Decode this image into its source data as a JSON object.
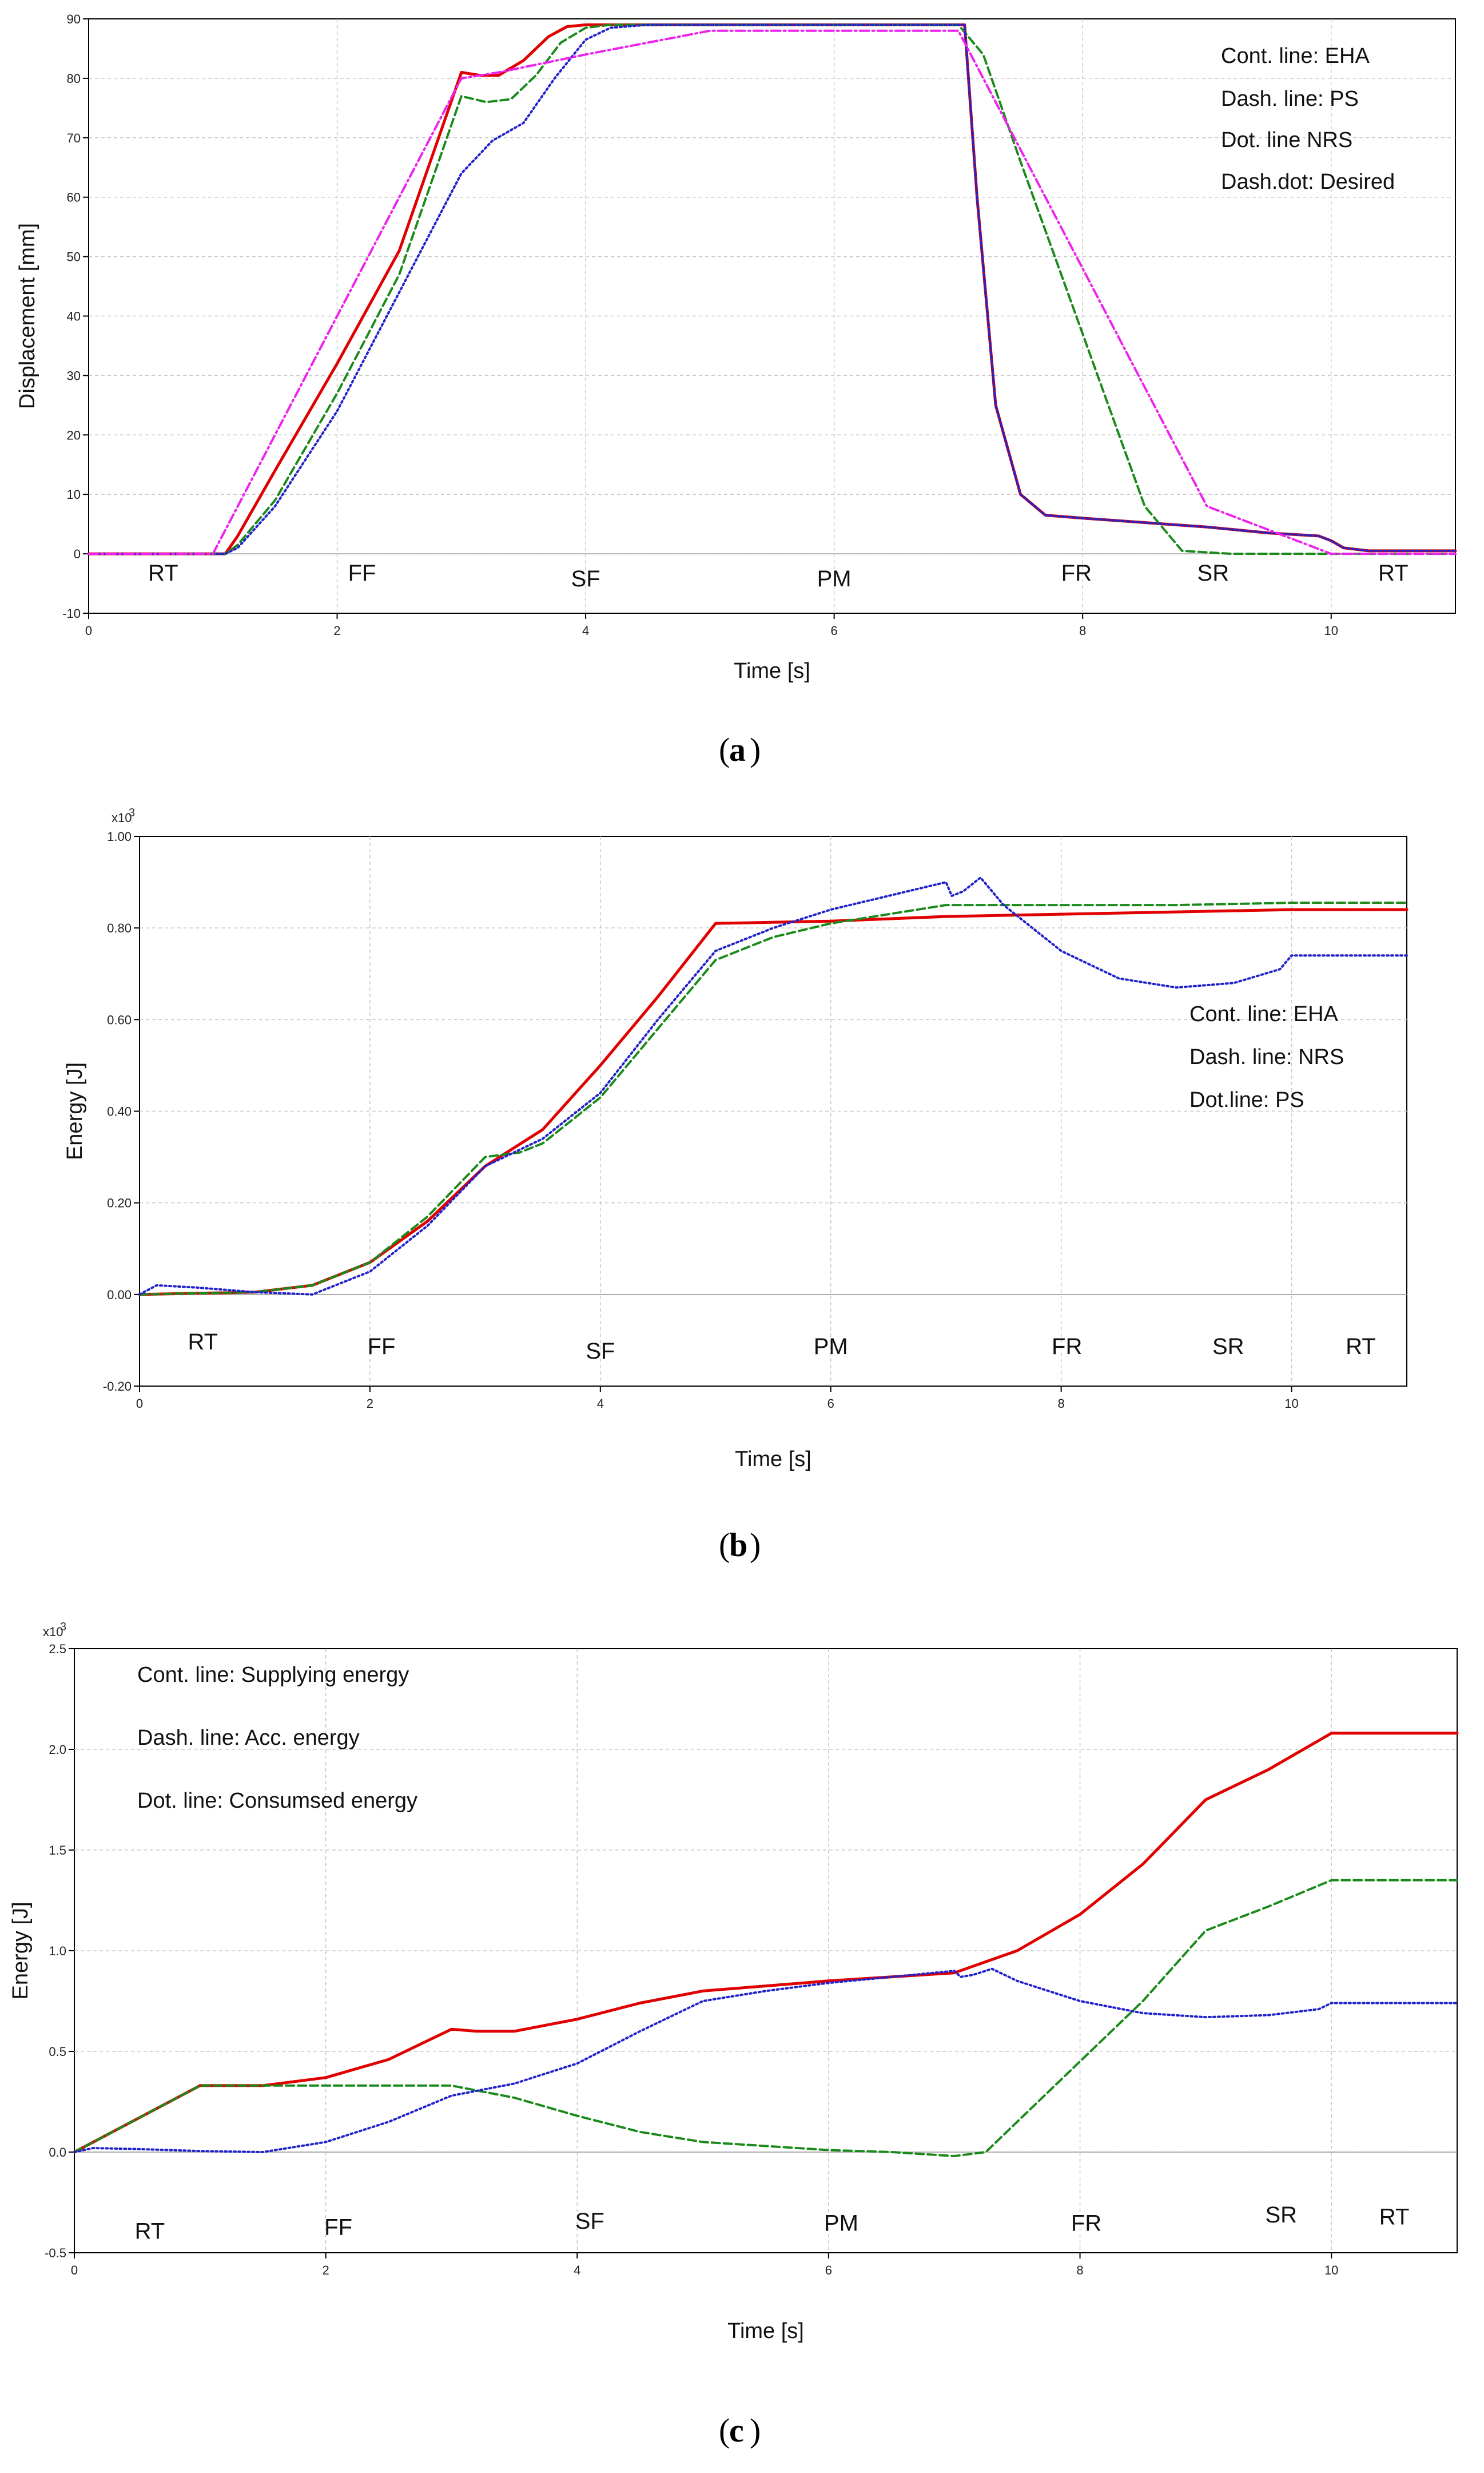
{
  "figure": {
    "panels": [
      {
        "caption_letter": "a"
      },
      {
        "caption_letter": "b"
      },
      {
        "caption_letter": "c"
      }
    ]
  },
  "chart_data": [
    {
      "type": "line",
      "panel": "a",
      "xlabel": "Time [s]",
      "ylabel": "Displacement [mm]",
      "xlim": [
        0,
        11
      ],
      "ylim": [
        -10,
        90
      ],
      "x_ticks": [
        0,
        2,
        4,
        6,
        8,
        10
      ],
      "x_tick_labels": [
        "0",
        "2",
        "4",
        "6",
        "8",
        "10"
      ],
      "y_ticks": [
        -10,
        0,
        10,
        20,
        30,
        40,
        50,
        60,
        70,
        80,
        90
      ],
      "y_tick_labels": [
        "-10",
        "0",
        "10",
        "20",
        "30",
        "40",
        "50",
        "60",
        "70",
        "80",
        "90"
      ],
      "grid": true,
      "annotations": [
        "Cont. line: EHA",
        "Dash. line: PS",
        "Dot. line NRS",
        "Dash.dot: Desired"
      ],
      "phases": [
        {
          "label": "RT",
          "x": 0.6,
          "y": -4.5
        },
        {
          "label": "FF",
          "x": 2.2,
          "y": -4.5
        },
        {
          "label": "SF",
          "x": 4.0,
          "y": -5.5
        },
        {
          "label": "PM",
          "x": 6.0,
          "y": -5.5
        },
        {
          "label": "FR",
          "x": 7.95,
          "y": -4.5
        },
        {
          "label": "SR",
          "x": 9.05,
          "y": -4.5
        },
        {
          "label": "RT",
          "x": 10.5,
          "y": -4.5
        }
      ],
      "series": [
        {
          "name": "EHA",
          "color": "#e00000",
          "style": "solid",
          "x": [
            0,
            1.1,
            1.2,
            1.5,
            2.0,
            2.5,
            3.0,
            3.15,
            3.3,
            3.5,
            3.7,
            3.85,
            4.0,
            7.05,
            7.15,
            7.3,
            7.5,
            7.7,
            8.0,
            9.0,
            9.5,
            9.9,
            10.0,
            10.1,
            10.3,
            11.0
          ],
          "y": [
            0,
            0,
            3,
            14,
            32,
            51,
            81,
            80.5,
            80.5,
            83,
            87,
            88.7,
            89,
            89,
            60,
            25,
            10,
            6.5,
            6,
            4.5,
            3.5,
            3,
            2.2,
            1,
            0.5,
            0.5
          ]
        },
        {
          "name": "PS",
          "color": "#1a8a1a",
          "style": "dash",
          "x": [
            0,
            1.1,
            1.2,
            1.5,
            2.0,
            2.5,
            3.0,
            3.2,
            3.4,
            3.6,
            3.8,
            4.0,
            4.2,
            7.0,
            7.2,
            7.5,
            8.0,
            8.5,
            8.8,
            9.2,
            11.0
          ],
          "y": [
            0,
            0,
            1.5,
            9,
            27,
            47,
            77,
            76,
            76.5,
            80.5,
            86,
            88.5,
            89,
            89,
            84,
            66,
            37,
            8,
            0.5,
            0,
            0
          ]
        },
        {
          "name": "NRS",
          "color": "#2222cc",
          "style": "dot",
          "x": [
            0,
            1.1,
            1.2,
            1.5,
            2.0,
            2.5,
            3.0,
            3.25,
            3.5,
            3.75,
            4.0,
            4.2,
            4.5,
            7.05,
            7.15,
            7.3,
            7.5,
            7.7,
            8.0,
            9.0,
            9.5,
            9.9,
            10.0,
            10.1,
            10.3,
            11.0
          ],
          "y": [
            0,
            0,
            1,
            8,
            24,
            44,
            64,
            69.5,
            72.5,
            80,
            86.5,
            88.5,
            89,
            89,
            60,
            25,
            10,
            6.5,
            6,
            4.5,
            3.5,
            3,
            2.2,
            1,
            0.5,
            0.5
          ]
        },
        {
          "name": "Desired",
          "color": "#ee22ee",
          "style": "dashdot",
          "x": [
            0,
            1.0,
            3.0,
            3.3,
            4.0,
            5.0,
            7.0,
            9.0,
            10.0,
            11.0
          ],
          "y": [
            0,
            0,
            80,
            81,
            84,
            88,
            88,
            8,
            0,
            0
          ]
        }
      ]
    },
    {
      "type": "line",
      "panel": "b",
      "xlabel": "Time [s]",
      "ylabel": "Energy [J]",
      "y_multiplier": "x10",
      "y_multiplier_exp": "3",
      "xlim": [
        0,
        11
      ],
      "ylim": [
        -0.2,
        1.0
      ],
      "x_ticks": [
        0,
        2,
        4,
        6,
        8,
        10
      ],
      "x_tick_labels": [
        "0",
        "2",
        "4",
        "6",
        "8",
        "10"
      ],
      "y_ticks": [
        -0.2,
        0,
        0.2,
        0.4,
        0.6,
        0.8,
        1.0
      ],
      "y_tick_labels": [
        "-0.20",
        "0.00",
        "0.20",
        "0.40",
        "0.60",
        "0.80",
        "1.00"
      ],
      "grid": true,
      "annotations": [
        "Cont. line: EHA",
        "Dash. line: NRS",
        "Dot.line: PS"
      ],
      "phases": [
        {
          "label": "RT",
          "x": 0.55,
          "y": -0.12
        },
        {
          "label": "FF",
          "x": 2.1,
          "y": -0.13
        },
        {
          "label": "SF",
          "x": 4.0,
          "y": -0.14
        },
        {
          "label": "PM",
          "x": 6.0,
          "y": -0.13
        },
        {
          "label": "FR",
          "x": 8.05,
          "y": -0.13
        },
        {
          "label": "SR",
          "x": 9.45,
          "y": -0.13
        },
        {
          "label": "RT",
          "x": 10.6,
          "y": -0.13
        }
      ],
      "series": [
        {
          "name": "EHA",
          "color": "#e00000",
          "style": "solid",
          "x": [
            0,
            1.0,
            1.5,
            2.0,
            2.5,
            3.0,
            3.5,
            4.0,
            4.5,
            5.0,
            6.0,
            7.0,
            8.0,
            9.0,
            10.0,
            11.0
          ],
          "y": [
            0,
            0.005,
            0.02,
            0.07,
            0.16,
            0.28,
            0.36,
            0.5,
            0.65,
            0.81,
            0.815,
            0.825,
            0.83,
            0.835,
            0.84,
            0.84
          ]
        },
        {
          "name": "NRS",
          "color": "#1a8a1a",
          "style": "dash",
          "x": [
            0,
            1.0,
            1.5,
            2.0,
            2.5,
            3.0,
            3.3,
            3.5,
            4.0,
            4.5,
            5.0,
            5.5,
            6.0,
            7.0,
            8.0,
            9.0,
            10.0,
            11.0
          ],
          "y": [
            0,
            0.005,
            0.02,
            0.07,
            0.17,
            0.3,
            0.31,
            0.33,
            0.43,
            0.58,
            0.73,
            0.78,
            0.81,
            0.85,
            0.85,
            0.85,
            0.855,
            0.855
          ]
        },
        {
          "name": "PS",
          "color": "#2222cc",
          "style": "dot",
          "x": [
            0,
            0.15,
            0.5,
            1.0,
            1.5,
            2.0,
            2.5,
            3.0,
            3.5,
            4.0,
            4.5,
            5.0,
            5.5,
            6.0,
            6.5,
            7.0,
            7.05,
            7.15,
            7.3,
            7.5,
            8.0,
            8.5,
            9.0,
            9.5,
            9.9,
            10.0,
            10.2,
            11.0
          ],
          "y": [
            0,
            0.02,
            0.015,
            0.005,
            0.0,
            0.05,
            0.15,
            0.28,
            0.34,
            0.44,
            0.6,
            0.75,
            0.8,
            0.84,
            0.87,
            0.9,
            0.87,
            0.88,
            0.91,
            0.85,
            0.75,
            0.69,
            0.67,
            0.68,
            0.71,
            0.74,
            0.74,
            0.74
          ]
        }
      ]
    },
    {
      "type": "line",
      "panel": "c",
      "xlabel": "Time [s]",
      "ylabel": "Energy [J]",
      "y_multiplier": "x10",
      "y_multiplier_exp": "3",
      "xlim": [
        0,
        11
      ],
      "ylim": [
        -0.5,
        2.5
      ],
      "x_ticks": [
        0,
        2,
        4,
        6,
        8,
        10
      ],
      "x_tick_labels": [
        "0",
        "2",
        "4",
        "6",
        "8",
        "10"
      ],
      "y_ticks": [
        -0.5,
        0,
        0.5,
        1.0,
        1.5,
        2.0,
        2.5
      ],
      "y_tick_labels": [
        "-0.5",
        "0.0",
        "0.5",
        "1.0",
        "1.5",
        "2.0",
        "2.5"
      ],
      "grid": true,
      "annotations": [
        "Cont. line: Supplying energy",
        "Dash. line: Acc. energy",
        "Dot. line: Consumsed energy"
      ],
      "phases": [
        {
          "label": "RT",
          "x": 0.6,
          "y": -0.43
        },
        {
          "label": "FF",
          "x": 2.1,
          "y": -0.41
        },
        {
          "label": "SF",
          "x": 4.1,
          "y": -0.38
        },
        {
          "label": "PM",
          "x": 6.1,
          "y": -0.39
        },
        {
          "label": "FR",
          "x": 8.05,
          "y": -0.39
        },
        {
          "label": "SR",
          "x": 9.6,
          "y": -0.35
        },
        {
          "label": "RT",
          "x": 10.5,
          "y": -0.36
        }
      ],
      "series": [
        {
          "name": "Supplying energy",
          "color": "#e00000",
          "style": "solid",
          "x": [
            0,
            1.0,
            1.5,
            2.0,
            2.5,
            3.0,
            3.2,
            3.5,
            4.0,
            4.5,
            5.0,
            6.0,
            7.0,
            7.5,
            8.0,
            8.5,
            9.0,
            9.5,
            10.0,
            11.0
          ],
          "y": [
            0,
            0.33,
            0.33,
            0.37,
            0.46,
            0.61,
            0.6,
            0.6,
            0.66,
            0.74,
            0.8,
            0.85,
            0.89,
            1.0,
            1.18,
            1.43,
            1.75,
            1.9,
            2.08,
            2.08
          ]
        },
        {
          "name": "Acc. energy",
          "color": "#1a8a1a",
          "style": "dash",
          "x": [
            0,
            1.0,
            2.0,
            3.0,
            3.5,
            4.0,
            4.5,
            5.0,
            5.5,
            6.0,
            6.5,
            7.0,
            7.25,
            7.5,
            8.0,
            8.5,
            9.0,
            9.5,
            10.0,
            11.0
          ],
          "y": [
            0,
            0.33,
            0.33,
            0.33,
            0.27,
            0.18,
            0.1,
            0.05,
            0.03,
            0.01,
            0.0,
            -0.02,
            0.0,
            0.15,
            0.45,
            0.75,
            1.1,
            1.22,
            1.35,
            1.35
          ]
        },
        {
          "name": "Consumsed energy",
          "color": "#2222cc",
          "style": "dot",
          "x": [
            0,
            0.15,
            0.5,
            1.0,
            1.5,
            2.0,
            2.5,
            3.0,
            3.5,
            4.0,
            4.5,
            5.0,
            5.5,
            6.0,
            6.5,
            7.0,
            7.05,
            7.15,
            7.3,
            7.5,
            8.0,
            8.5,
            9.0,
            9.5,
            9.9,
            10.0,
            10.2,
            11.0
          ],
          "y": [
            0,
            0.02,
            0.015,
            0.005,
            0.0,
            0.05,
            0.15,
            0.28,
            0.34,
            0.44,
            0.6,
            0.75,
            0.8,
            0.84,
            0.87,
            0.9,
            0.87,
            0.88,
            0.91,
            0.85,
            0.75,
            0.69,
            0.67,
            0.68,
            0.71,
            0.74,
            0.74,
            0.74
          ]
        }
      ]
    }
  ]
}
